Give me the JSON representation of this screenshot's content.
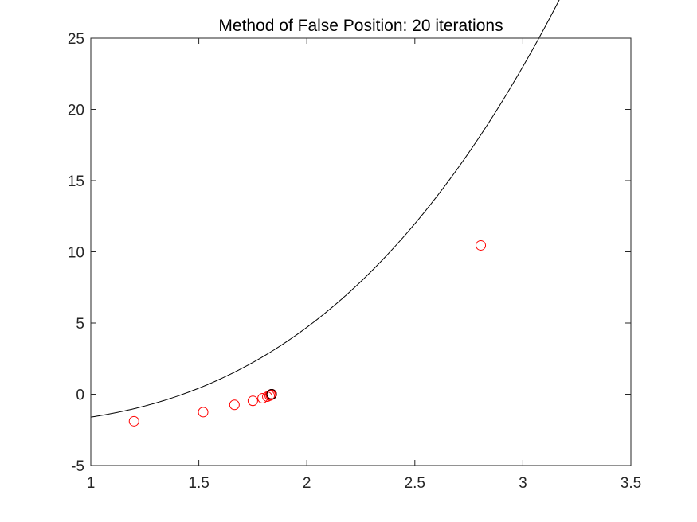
{
  "chart_data": {
    "type": "line",
    "title": "Method of False Position: 20 iterations",
    "xlabel": "",
    "ylabel": "",
    "xlim": [
      1,
      3.5
    ],
    "ylim": [
      -5,
      25
    ],
    "xticks": [
      "1",
      "1.5",
      "2",
      "2.5",
      "3",
      "3.5"
    ],
    "yticks": [
      "-5",
      "0",
      "5",
      "10",
      "15",
      "20",
      "25"
    ],
    "grid": false,
    "legend": "none",
    "curve": {
      "function": "x^3 - 0.7*x - 1.9",
      "x_range": [
        1,
        3.31
      ],
      "color": "#000000"
    },
    "iterates": {
      "marker": "open-circle",
      "color": "#ff0000",
      "last_point_color": "#000000",
      "x": [
        1.2,
        1.52,
        1.665,
        1.75,
        1.795,
        1.817,
        1.828,
        1.833,
        1.835,
        1.836,
        1.8365,
        1.8368,
        1.837,
        1.8371,
        1.8372,
        1.8372,
        1.8372,
        1.8372,
        1.8372,
        2.805
      ],
      "y": [
        -1.89,
        -1.25,
        -0.74,
        -0.46,
        -0.28,
        -0.17,
        -0.1,
        -0.06,
        -0.04,
        -0.025,
        -0.016,
        -0.01,
        -0.006,
        -0.004,
        -0.002,
        -0.001,
        0.0,
        0.0,
        0.0,
        10.45
      ]
    }
  }
}
